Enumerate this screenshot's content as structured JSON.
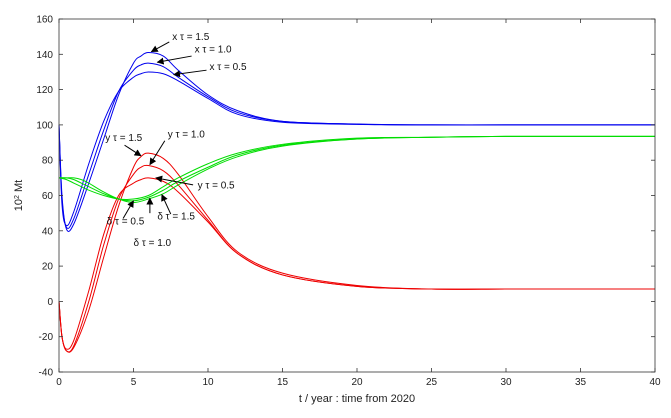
{
  "chart_data": {
    "type": "line",
    "xlabel": "t / year : time from 2020",
    "ylabel_base": "10",
    "ylabel_exp": "2",
    "ylabel_unit": " Mt",
    "xlim": [
      0,
      40
    ],
    "ylim": [
      -40,
      160
    ],
    "xticks": [
      0,
      5,
      10,
      15,
      20,
      25,
      30,
      35,
      40
    ],
    "yticks": [
      -40,
      -20,
      0,
      20,
      40,
      60,
      80,
      100,
      120,
      140,
      160
    ],
    "grid": false,
    "legend": "none",
    "colors": {
      "x": "#0000ee",
      "y": "#ee0000",
      "delta": "#00dd00"
    },
    "series": [
      {
        "variable": "x",
        "tau": 1.5,
        "color": "#0000ee",
        "x": [
          0,
          0.2,
          0.5,
          1,
          2,
          3,
          4,
          5,
          5.5,
          6,
          7,
          8,
          10,
          12,
          15,
          20,
          25,
          30,
          35,
          40
        ],
        "y": [
          100,
          60,
          41,
          44,
          67,
          92,
          117,
          135,
          139,
          141,
          139,
          131,
          117,
          108,
          102,
          100.5,
          100,
          100,
          100,
          100
        ]
      },
      {
        "variable": "x",
        "tau": 1.0,
        "color": "#0000ee",
        "x": [
          0,
          0.2,
          0.5,
          1,
          2,
          3,
          4,
          5,
          5.5,
          6,
          7,
          8,
          10,
          12,
          15,
          20,
          25,
          30,
          35,
          40
        ],
        "y": [
          100,
          58,
          42,
          47,
          72,
          97,
          119,
          131,
          134,
          135,
          133,
          127,
          116,
          107,
          102,
          100.4,
          100,
          100,
          100,
          100
        ]
      },
      {
        "variable": "x",
        "tau": 0.5,
        "color": "#0000ee",
        "x": [
          0,
          0.2,
          0.5,
          1,
          2,
          3,
          4,
          5,
          5.5,
          6,
          7,
          8,
          10,
          12,
          15,
          20,
          25,
          30,
          35,
          40
        ],
        "y": [
          100,
          55,
          43,
          51,
          78,
          102,
          119,
          127,
          129,
          130,
          129,
          125,
          115,
          106,
          101.5,
          100.3,
          100,
          100,
          100,
          100
        ]
      },
      {
        "variable": "y",
        "tau": 1.5,
        "color": "#ee0000",
        "x": [
          0,
          0.2,
          0.5,
          1,
          2,
          3,
          4,
          5,
          5.5,
          6,
          7,
          8,
          10,
          12,
          15,
          20,
          25,
          30,
          35,
          40
        ],
        "y": [
          0,
          -20,
          -28,
          -26,
          -5,
          25,
          54,
          76,
          82,
          84,
          81,
          72,
          48,
          28,
          16,
          9,
          7,
          7,
          7,
          7
        ]
      },
      {
        "variable": "y",
        "tau": 1.0,
        "color": "#ee0000",
        "x": [
          0,
          0.2,
          0.5,
          1,
          2,
          3,
          4,
          5,
          5.5,
          6,
          7,
          8,
          10,
          12,
          15,
          20,
          25,
          30,
          35,
          40
        ],
        "y": [
          0,
          -20,
          -28,
          -25,
          0,
          32,
          58,
          72,
          76,
          77,
          74,
          66,
          46,
          27,
          15,
          8.5,
          7,
          7,
          7,
          7
        ]
      },
      {
        "variable": "y",
        "tau": 0.5,
        "color": "#ee0000",
        "x": [
          0,
          0.2,
          0.5,
          1,
          2,
          3,
          4,
          5,
          5.5,
          6,
          7,
          8,
          10,
          12,
          15,
          20,
          25,
          30,
          35,
          40
        ],
        "y": [
          0,
          -20,
          -27,
          -22,
          6,
          38,
          60,
          67,
          69,
          70,
          68,
          62,
          45,
          27,
          15,
          8.5,
          7,
          7,
          7,
          7
        ]
      },
      {
        "variable": "delta",
        "tau": 1.5,
        "color": "#00dd00",
        "x": [
          0,
          0.5,
          1,
          1.5,
          2,
          3,
          4,
          5,
          6,
          7,
          8,
          10,
          12,
          15,
          20,
          25,
          30,
          35,
          40
        ],
        "y": [
          70,
          70,
          70,
          69,
          67,
          62,
          58,
          56,
          58,
          61,
          66,
          75,
          82,
          88,
          92,
          93,
          93.5,
          93.5,
          93.5
        ]
      },
      {
        "variable": "delta",
        "tau": 1.0,
        "color": "#00dd00",
        "x": [
          0,
          0.5,
          1,
          1.5,
          2,
          3,
          4,
          5,
          6,
          7,
          8,
          10,
          12,
          15,
          20,
          25,
          30,
          35,
          40
        ],
        "y": [
          70,
          70,
          69,
          67,
          65,
          61,
          58,
          57,
          59,
          63,
          68,
          76,
          83,
          88.5,
          92,
          93,
          93.5,
          93.5,
          93.5
        ]
      },
      {
        "variable": "delta",
        "tau": 0.5,
        "color": "#00dd00",
        "x": [
          0,
          0.5,
          1,
          1.5,
          2,
          3,
          4,
          5,
          6,
          7,
          8,
          10,
          12,
          15,
          20,
          25,
          30,
          35,
          40
        ],
        "y": [
          70,
          69,
          67,
          65,
          63,
          60,
          58,
          58,
          60,
          65,
          70,
          78,
          84,
          89,
          92.5,
          93,
          93.5,
          93.5,
          93.5
        ]
      }
    ],
    "annotations": [
      {
        "var": "x",
        "tau_label": " τ = 1.5",
        "text_at": [
          7.6,
          148
        ],
        "arrow_from": [
          7.4,
          147
        ],
        "arrow_to": [
          6.2,
          141.5
        ]
      },
      {
        "var": "x",
        "tau_label": " τ = 1.0",
        "text_at": [
          9.1,
          141
        ],
        "arrow_from": [
          8.9,
          139
        ],
        "arrow_to": [
          6.6,
          135.5
        ]
      },
      {
        "var": "x",
        "tau_label": " τ = 0.5",
        "text_at": [
          10.1,
          131
        ],
        "arrow_from": [
          9.9,
          131
        ],
        "arrow_to": [
          7.7,
          128.5
        ]
      },
      {
        "var": "y",
        "tau_label": " τ = 1.5",
        "text_at": [
          3.1,
          91
        ],
        "arrow_from": [
          4.4,
          88.5
        ],
        "arrow_to": [
          5.5,
          82.5
        ]
      },
      {
        "var": "y",
        "tau_label": " τ = 1.0",
        "text_at": [
          7.3,
          93
        ],
        "arrow_from": [
          7.1,
          91
        ],
        "arrow_to": [
          6.1,
          77.5
        ]
      },
      {
        "var": "y",
        "tau_label": " τ = 0.5",
        "text_at": [
          9.3,
          64
        ],
        "arrow_from": [
          9.0,
          66
        ],
        "arrow_to": [
          6.5,
          70
        ]
      },
      {
        "var": "δ",
        "tau_label": " τ = 0.5",
        "text_at": [
          3.2,
          43.5
        ],
        "arrow_from": [
          4.3,
          47
        ],
        "arrow_to": [
          5.0,
          57
        ]
      },
      {
        "var": "δ",
        "tau_label": " τ = 1.0",
        "text_at": [
          5.0,
          31.5
        ],
        "arrow_from": [
          6.1,
          50
        ],
        "arrow_to": [
          6.1,
          58.5
        ]
      },
      {
        "var": "δ",
        "tau_label": " τ = 1.5",
        "text_at": [
          6.6,
          46.5
        ],
        "arrow_from": [
          7.5,
          49.5
        ],
        "arrow_to": [
          6.9,
          60.5
        ]
      }
    ]
  }
}
